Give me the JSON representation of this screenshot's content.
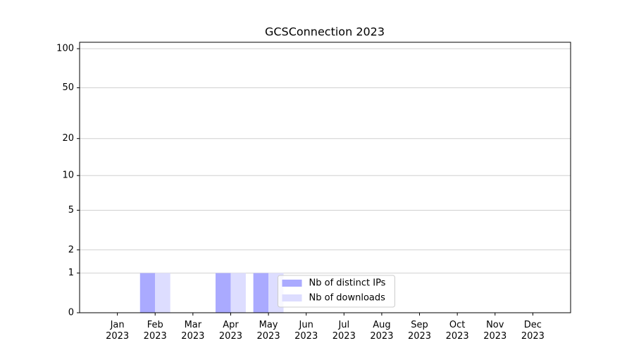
{
  "chart_data": {
    "type": "bar",
    "title": "GCSConnection 2023",
    "categories": [
      "Jan 2023",
      "Feb 2023",
      "Mar 2023",
      "Apr 2023",
      "May 2023",
      "Jun 2023",
      "Jul 2023",
      "Aug 2023",
      "Sep 2023",
      "Oct 2023",
      "Nov 2023",
      "Dec 2023"
    ],
    "series": [
      {
        "name": "Nb of distinct IPs",
        "color": "#aaaaff",
        "values": [
          0,
          1,
          0,
          1,
          1,
          0,
          0,
          0,
          0,
          0,
          0,
          0
        ]
      },
      {
        "name": "Nb of downloads",
        "color": "#ddddff",
        "values": [
          0,
          1,
          0,
          1,
          1,
          0,
          0,
          0,
          0,
          0,
          0,
          0
        ]
      }
    ],
    "yscale": "log1p",
    "ylim": [
      0,
      112
    ],
    "yticks": [
      0,
      1,
      2,
      5,
      10,
      20,
      50,
      100
    ],
    "grid": true,
    "legend": "lower center"
  }
}
